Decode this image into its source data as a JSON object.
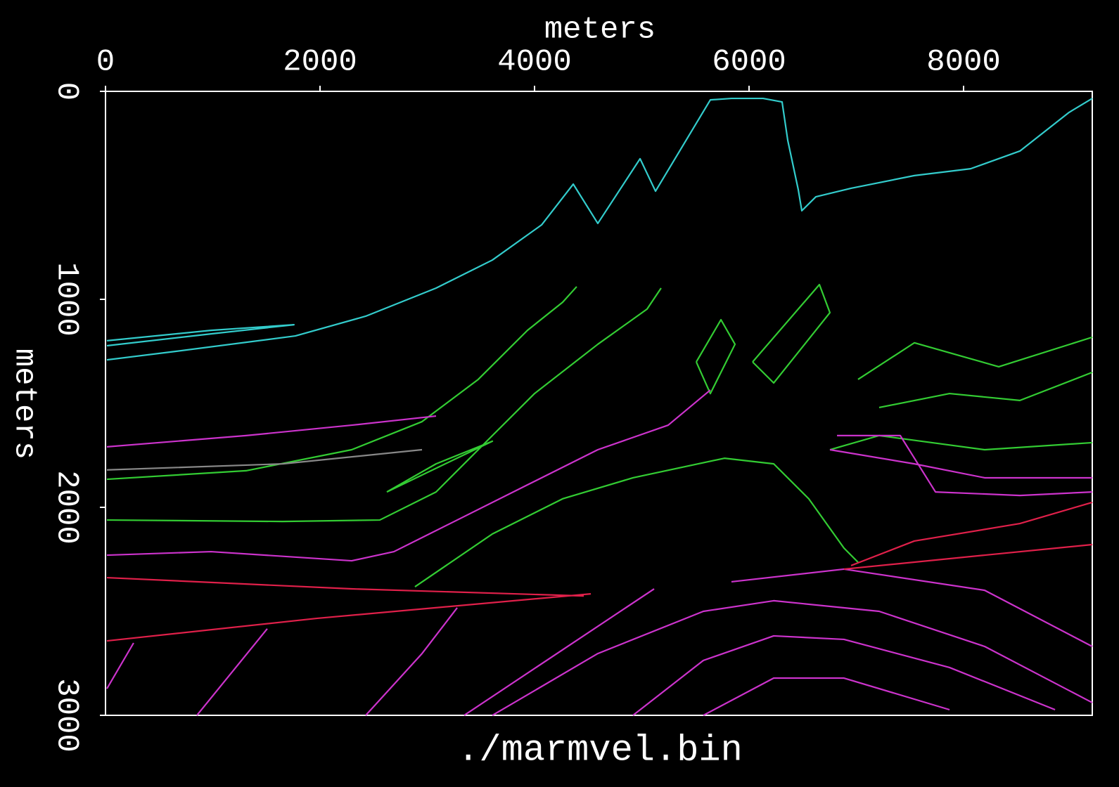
{
  "chart_data": {
    "type": "line",
    "title": "./marmvel.bin",
    "x_label": "meters",
    "y_label": "meters",
    "xlim": [
      0,
      9200
    ],
    "ylim": [
      0,
      3000
    ],
    "y_inverted": true,
    "x_axis_position": "top",
    "xticks": [
      0,
      2000,
      4000,
      6000,
      8000
    ],
    "yticks": [
      0,
      1000,
      2000,
      3000
    ],
    "grid": false,
    "series": [
      {
        "color": "#33cccc",
        "x": [
          13,
          656,
          1770,
          2426,
          3082,
          3607,
          4066,
          4361,
          4590,
          4984,
          5128,
          5639,
          5836,
          6131,
          6308,
          6361,
          6459,
          6492,
          6623,
          6951,
          7541,
          8066,
          8525,
          8984,
          9200
        ],
        "y": [
          1291,
          1250,
          1176,
          1081,
          946,
          811,
          642,
          446,
          635,
          324,
          480,
          41,
          34,
          34,
          51,
          236,
          473,
          574,
          507,
          466,
          405,
          372,
          287,
          101,
          34
        ]
      },
      {
        "color": "#33cccc",
        "x": [
          13,
          984,
          1757,
          984,
          13
        ],
        "y": [
          1199,
          1149,
          1122,
          1166,
          1223
        ]
      },
      {
        "color": "#33cc33",
        "x": [
          13,
          1311,
          2295,
          2951,
          3475,
          3934,
          4262,
          4393
        ],
        "y": [
          1865,
          1824,
          1723,
          1588,
          1385,
          1149,
          1014,
          939
        ]
      },
      {
        "color": "#33cc33",
        "x": [
          13,
          1652,
          2557,
          3082,
          3607,
          4000,
          4590,
          5049,
          5180
        ],
        "y": [
          2061,
          2068,
          2061,
          1926,
          1655,
          1453,
          1216,
          1047,
          946
        ]
      },
      {
        "color": "#33cc33",
        "x": [
          2885,
          3607,
          4262,
          4918,
          5770,
          6230,
          6557,
          6885,
          7016
        ],
        "y": [
          2382,
          2128,
          1959,
          1858,
          1764,
          1791,
          1959,
          2196,
          2264
        ]
      },
      {
        "color": "#33cc33",
        "x": [
          7016,
          7541,
          8328,
          9200
        ],
        "y": [
          1385,
          1209,
          1324,
          1182
        ]
      },
      {
        "color": "#33cc33",
        "x": [
          7213,
          7869,
          8525,
          9200
        ],
        "y": [
          1520,
          1453,
          1486,
          1351
        ]
      },
      {
        "color": "#33cc33",
        "x": [
          6754,
          7213,
          8197,
          9200
        ],
        "y": [
          1723,
          1655,
          1723,
          1689
        ]
      },
      {
        "color": "#33cc33",
        "x": [
          6033,
          6656,
          6754,
          6230,
          6033
        ],
        "y": [
          1301,
          929,
          1064,
          1402,
          1301
        ]
      },
      {
        "color": "#33cc33",
        "x": [
          5508,
          5738,
          5869,
          5639,
          5508
        ],
        "y": [
          1301,
          1098,
          1216,
          1453,
          1301
        ]
      },
      {
        "color": "#33cc33",
        "x": [
          2623,
          3607,
          3082,
          2623
        ],
        "y": [
          1926,
          1682,
          1791,
          1926
        ]
      },
      {
        "color": "#888888",
        "x": [
          13,
          1652,
          2951
        ],
        "y": [
          1820,
          1791,
          1723
        ]
      },
      {
        "color": "#cc33cc",
        "x": [
          13,
          1311,
          2295,
          3082
        ],
        "y": [
          1709,
          1655,
          1605,
          1561
        ]
      },
      {
        "color": "#cc33cc",
        "x": [
          13,
          984,
          2295,
          2689,
          3279,
          3934,
          4590,
          5246,
          5639
        ],
        "y": [
          2230,
          2213,
          2257,
          2213,
          2061,
          1892,
          1723,
          1605,
          1436
        ]
      },
      {
        "color": "#cc33cc",
        "x": [
          3607,
          4590,
          5574,
          6230,
          7213,
          8197,
          9200
        ],
        "y": [
          3000,
          2703,
          2500,
          2449,
          2500,
          2669,
          2939
        ]
      },
      {
        "color": "#cc33cc",
        "x": [
          4918,
          5574,
          6230,
          6885,
          7869,
          8853
        ],
        "y": [
          3000,
          2736,
          2618,
          2635,
          2770,
          2973
        ]
      },
      {
        "color": "#cc33cc",
        "x": [
          5574,
          6230,
          6885,
          7869
        ],
        "y": [
          3000,
          2821,
          2821,
          2973
        ]
      },
      {
        "color": "#cc33cc",
        "x": [
          2426,
          2951,
          3279
        ],
        "y": [
          3000,
          2703,
          2483
        ]
      },
      {
        "color": "#cc33cc",
        "x": [
          852,
          1508
        ],
        "y": [
          3000,
          2584
        ]
      },
      {
        "color": "#cc33cc",
        "x": [
          13,
          262
        ],
        "y": [
          2872,
          2652
        ]
      },
      {
        "color": "#cc33cc",
        "x": [
          3344,
          5115
        ],
        "y": [
          3000,
          2392
        ]
      },
      {
        "color": "#cc33cc",
        "x": [
          5836,
          6885,
          8197,
          9200
        ],
        "y": [
          2358,
          2297,
          2399,
          2669
        ]
      },
      {
        "color": "#cc33cc",
        "x": [
          6754,
          7541,
          8197,
          9200
        ],
        "y": [
          1723,
          1791,
          1858,
          1858
        ]
      },
      {
        "color": "#cc33cc",
        "x": [
          6820,
          7410,
          7738,
          8525,
          9200
        ],
        "y": [
          1655,
          1655,
          1926,
          1943,
          1926
        ]
      },
      {
        "color": "#e0204a",
        "x": [
          13,
          2295,
          4459
        ],
        "y": [
          2338,
          2392,
          2426
        ]
      },
      {
        "color": "#e0204a",
        "x": [
          13,
          1967,
          4525
        ],
        "y": [
          2642,
          2534,
          2416
        ]
      },
      {
        "color": "#e0204a",
        "x": [
          6885,
          8197,
          9200
        ],
        "y": [
          2297,
          2230,
          2179
        ]
      },
      {
        "color": "#e0204a",
        "x": [
          6951,
          7541,
          8525,
          9200
        ],
        "y": [
          2280,
          2162,
          2078,
          1976
        ]
      }
    ]
  }
}
